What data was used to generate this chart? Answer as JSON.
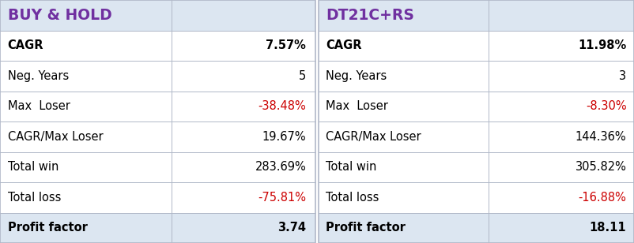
{
  "header_bg": "#dce6f1",
  "row_bg": "#ffffff",
  "last_row_bg": "#dce6f1",
  "header_left": "BUY & HOLD",
  "header_right": "DT21C+RS",
  "header_color": "#7030a0",
  "rows": [
    {
      "label_left": "CAGR",
      "val_left": "7.57%",
      "label_right": "CAGR",
      "val_right": "11.98%",
      "bold": true,
      "color_left": "#000000",
      "color_right": "#000000"
    },
    {
      "label_left": "Neg. Years",
      "val_left": "5",
      "label_right": "Neg. Years",
      "val_right": "3",
      "bold": false,
      "color_left": "#000000",
      "color_right": "#000000"
    },
    {
      "label_left": "Max  Loser",
      "val_left": "-38.48%",
      "label_right": "Max  Loser",
      "val_right": "-8.30%",
      "bold": false,
      "color_left": "#cc0000",
      "color_right": "#cc0000"
    },
    {
      "label_left": "CAGR/Max Loser",
      "val_left": "19.67%",
      "label_right": "CAGR/Max Loser",
      "val_right": "144.36%",
      "bold": false,
      "color_left": "#000000",
      "color_right": "#000000"
    },
    {
      "label_left": "Total win",
      "val_left": "283.69%",
      "label_right": "Total win",
      "val_right": "305.82%",
      "bold": false,
      "color_left": "#000000",
      "color_right": "#000000"
    },
    {
      "label_left": "Total loss",
      "val_left": "-75.81%",
      "label_right": "Total loss",
      "val_right": "-16.88%",
      "bold": false,
      "color_left": "#cc0000",
      "color_right": "#cc0000"
    },
    {
      "label_left": "Profit factor",
      "val_left": "3.74",
      "label_right": "Profit factor",
      "val_right": "18.11",
      "bold": true,
      "color_left": "#000000",
      "color_right": "#000000"
    }
  ],
  "figsize": [
    8.02,
    3.08
  ],
  "dpi": 100,
  "border_color": "#b0b8c8",
  "font_size_header": 13.5,
  "font_size_row": 10.5
}
